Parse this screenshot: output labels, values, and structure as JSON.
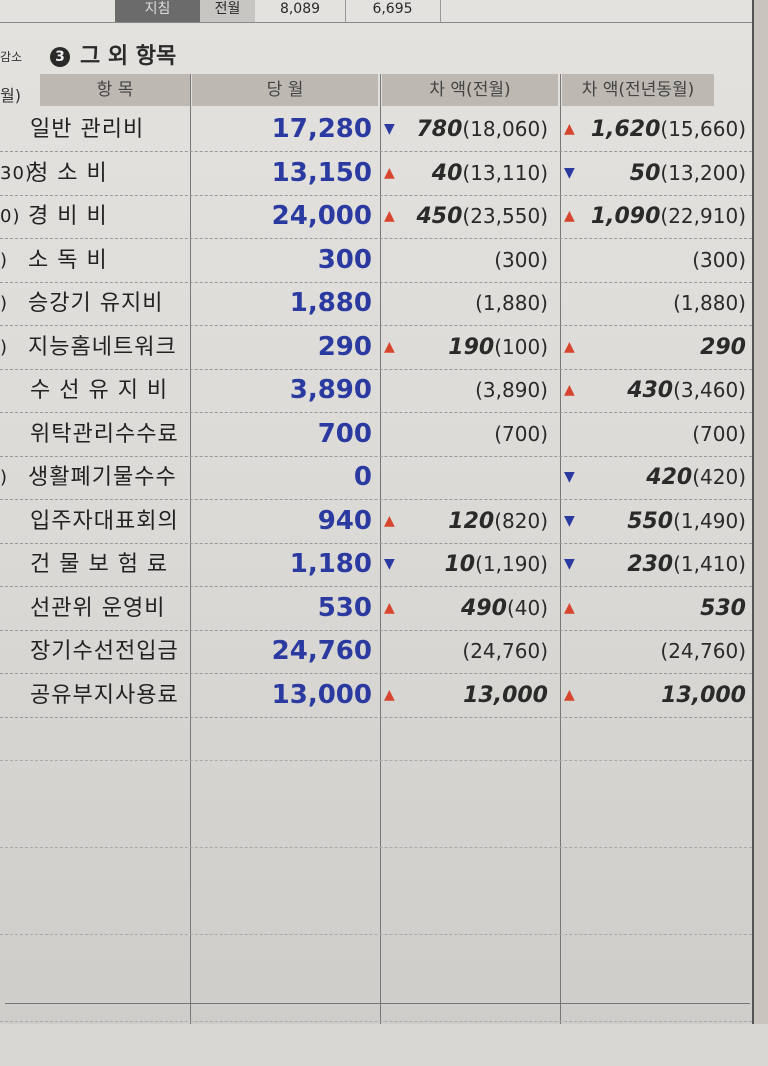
{
  "top_strip": {
    "label1": "지침",
    "label2": "전월",
    "val1": "8,089",
    "val2": "6,695"
  },
  "side_text": {
    "top": "감소",
    "header": "월)"
  },
  "section": {
    "number": "3",
    "title": "그 외 항목"
  },
  "columns": [
    "항  목",
    "당  월",
    "차 액(전월)",
    "차 액(전년동월)"
  ],
  "colors": {
    "current": "#2a3aa0",
    "up": "#d8452f",
    "down": "#2a3aa0"
  },
  "rows": [
    {
      "prefix": "",
      "item": "일반  관리비",
      "current": "17,280",
      "d1": {
        "dir": "down",
        "amt": "780",
        "prev": "(18,060)"
      },
      "d2": {
        "dir": "up",
        "amt": "1,620",
        "prev": "(15,660)"
      }
    },
    {
      "prefix": "30)",
      "item": "청  소  비",
      "current": "13,150",
      "d1": {
        "dir": "up",
        "amt": "40",
        "prev": "(13,110)"
      },
      "d2": {
        "dir": "down",
        "amt": "50",
        "prev": "(13,200)"
      }
    },
    {
      "prefix": "0)",
      "item": "경  비  비",
      "current": "24,000",
      "d1": {
        "dir": "up",
        "amt": "450",
        "prev": "(23,550)"
      },
      "d2": {
        "dir": "up",
        "amt": "1,090",
        "prev": "(22,910)"
      }
    },
    {
      "prefix": ")",
      "item": "소  독  비",
      "current": "300",
      "d1": {
        "dir": "",
        "amt": "",
        "prev": "(300)"
      },
      "d2": {
        "dir": "",
        "amt": "",
        "prev": "(300)"
      }
    },
    {
      "prefix": ")",
      "item": "승강기  유지비",
      "current": "1,880",
      "d1": {
        "dir": "",
        "amt": "",
        "prev": "(1,880)"
      },
      "d2": {
        "dir": "",
        "amt": "",
        "prev": "(1,880)"
      }
    },
    {
      "prefix": ")",
      "item": "지능홈네트워크",
      "current": "290",
      "d1": {
        "dir": "up",
        "amt": "190",
        "prev": "(100)"
      },
      "d2": {
        "dir": "up",
        "amt": "290",
        "prev": ""
      }
    },
    {
      "prefix": "",
      "item": "수 선 유 지 비",
      "current": "3,890",
      "d1": {
        "dir": "",
        "amt": "",
        "prev": "(3,890)"
      },
      "d2": {
        "dir": "up",
        "amt": "430",
        "prev": "(3,460)"
      }
    },
    {
      "prefix": "",
      "item": "위탁관리수수료",
      "current": "700",
      "d1": {
        "dir": "",
        "amt": "",
        "prev": "(700)"
      },
      "d2": {
        "dir": "",
        "amt": "",
        "prev": "(700)"
      }
    },
    {
      "prefix": ")",
      "item": "생활폐기물수수",
      "current": "0",
      "d1": {
        "dir": "",
        "amt": "",
        "prev": ""
      },
      "d2": {
        "dir": "down",
        "amt": "420",
        "prev": "(420)"
      }
    },
    {
      "prefix": "",
      "item": "입주자대표회의",
      "current": "940",
      "d1": {
        "dir": "up",
        "amt": "120",
        "prev": "(820)"
      },
      "d2": {
        "dir": "down",
        "amt": "550",
        "prev": "(1,490)"
      }
    },
    {
      "prefix": "",
      "item": "건 물 보 험 료",
      "current": "1,180",
      "d1": {
        "dir": "down",
        "amt": "10",
        "prev": "(1,190)"
      },
      "d2": {
        "dir": "down",
        "amt": "230",
        "prev": "(1,410)"
      }
    },
    {
      "prefix": "",
      "item": "선관위  운영비",
      "current": "530",
      "d1": {
        "dir": "up",
        "amt": "490",
        "prev": "(40)"
      },
      "d2": {
        "dir": "up",
        "amt": "530",
        "prev": ""
      }
    },
    {
      "prefix": "",
      "item": "장기수선전입금",
      "current": "24,760",
      "d1": {
        "dir": "",
        "amt": "",
        "prev": "(24,760)"
      },
      "d2": {
        "dir": "",
        "amt": "",
        "prev": "(24,760)"
      }
    },
    {
      "prefix": "",
      "item": "공유부지사용료",
      "current": "13,000",
      "d1": {
        "dir": "up",
        "amt": "13,000",
        "prev": ""
      },
      "d2": {
        "dir": "up",
        "amt": "13,000",
        "prev": ""
      }
    }
  ]
}
